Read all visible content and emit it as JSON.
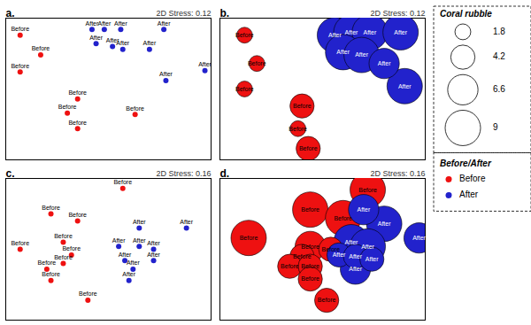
{
  "chart_data": [
    {
      "type": "scatter",
      "title": "a.",
      "annotation": "2D Stress: 0.12",
      "xlim": [
        0,
        1
      ],
      "ylim": [
        0,
        1
      ],
      "tick_labels": false,
      "legend": "right",
      "legend_title": "Before/After",
      "series": [
        {
          "name": "Before",
          "color": "#EE1111",
          "x": [
            0.07,
            0.17,
            0.07,
            0.35,
            0.3,
            0.35,
            0.63
          ],
          "y": [
            0.88,
            0.74,
            0.62,
            0.43,
            0.33,
            0.22,
            0.32
          ]
        },
        {
          "name": "After",
          "color": "#2222CC",
          "x": [
            0.42,
            0.48,
            0.56,
            0.77,
            0.44,
            0.52,
            0.57,
            0.7,
            0.97,
            0.78
          ],
          "y": [
            0.92,
            0.92,
            0.92,
            0.92,
            0.82,
            0.8,
            0.78,
            0.78,
            0.63,
            0.56
          ]
        }
      ]
    },
    {
      "type": "bubble",
      "title": "b.",
      "annotation": "2D Stress: 0.12",
      "xlim": [
        0,
        1
      ],
      "ylim": [
        0,
        1
      ],
      "tick_labels": false,
      "size_legend": {
        "title": "Coral rubble",
        "values": [
          1.8,
          4.2,
          6.6,
          9
        ]
      },
      "series": [
        {
          "name": "Before",
          "color": "#EE1111",
          "x": [
            0.12,
            0.18,
            0.12,
            0.4,
            0.38,
            0.43
          ],
          "y": [
            0.88,
            0.68,
            0.5,
            0.38,
            0.22,
            0.08
          ],
          "sizes": [
            1.8,
            1.8,
            1.8,
            4.2,
            1.8,
            4.2
          ]
        },
        {
          "name": "After",
          "color": "#2222CC",
          "x": [
            0.56,
            0.64,
            0.73,
            0.88,
            0.6,
            0.69,
            0.8,
            0.9
          ],
          "y": [
            0.88,
            0.9,
            0.9,
            0.9,
            0.76,
            0.74,
            0.68,
            0.52
          ],
          "sizes": [
            9.0,
            9.0,
            9.0,
            9.0,
            9.0,
            9.0,
            6.6,
            9.0
          ]
        }
      ]
    },
    {
      "type": "scatter",
      "title": "c.",
      "annotation": "2D Stress: 0.16",
      "xlim": [
        0,
        1
      ],
      "ylim": [
        0,
        1
      ],
      "tick_labels": false,
      "series": [
        {
          "name": "Before",
          "color": "#EE1111",
          "x": [
            0.07,
            0.22,
            0.35,
            0.28,
            0.32,
            0.28,
            0.2,
            0.22,
            0.4,
            0.57
          ],
          "y": [
            0.5,
            0.75,
            0.7,
            0.55,
            0.46,
            0.4,
            0.36,
            0.28,
            0.14,
            0.93
          ]
        },
        {
          "name": "After",
          "color": "#2222CC",
          "x": [
            0.65,
            0.88,
            0.55,
            0.65,
            0.72,
            0.58,
            0.72,
            0.62,
            0.6
          ],
          "y": [
            0.65,
            0.65,
            0.52,
            0.52,
            0.5,
            0.42,
            0.42,
            0.36,
            0.28
          ]
        }
      ]
    },
    {
      "type": "bubble",
      "title": "d.",
      "annotation": "2D Stress: 0.16",
      "xlim": [
        0,
        1
      ],
      "ylim": [
        0,
        1
      ],
      "tick_labels": false,
      "series": [
        {
          "name": "Before",
          "color": "#EE1111",
          "x": [
            0.72,
            0.44,
            0.6,
            0.14,
            0.44,
            0.54,
            0.4,
            0.34,
            0.44,
            0.44,
            0.52
          ],
          "y": [
            0.92,
            0.78,
            0.72,
            0.58,
            0.52,
            0.5,
            0.45,
            0.38,
            0.38,
            0.29,
            0.14
          ],
          "sizes": [
            9.0,
            9.0,
            9.0,
            9.0,
            6.6,
            4.2,
            4.2,
            4.2,
            4.2,
            4.2,
            4.2
          ]
        },
        {
          "name": "After",
          "color": "#2222CC",
          "x": [
            0.7,
            0.8,
            0.97,
            0.64,
            0.72,
            0.58,
            0.66,
            0.74,
            0.66
          ],
          "y": [
            0.78,
            0.68,
            0.58,
            0.55,
            0.52,
            0.46,
            0.45,
            0.43,
            0.36
          ],
          "sizes": [
            6.6,
            9.0,
            6.6,
            9.0,
            9.0,
            4.2,
            4.2,
            4.2,
            6.6
          ]
        }
      ]
    }
  ]
}
